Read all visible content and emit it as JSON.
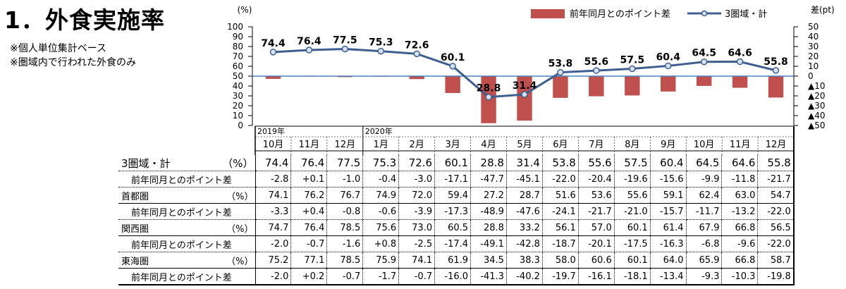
{
  "title": "1．外食実施率",
  "notes": [
    "※個人単位集計ベース",
    "※圏域内で行われた外食のみ"
  ],
  "chart_data": {
    "type": "bar",
    "categories": [
      "10月",
      "11月",
      "12月",
      "1月",
      "2月",
      "3月",
      "4月",
      "5月",
      "6月",
      "7月",
      "8月",
      "9月",
      "10月",
      "11月",
      "12月"
    ],
    "year_labels": [
      {
        "text": "2019年",
        "index": 0
      },
      {
        "text": "2020年",
        "index": 3
      }
    ],
    "left_axis": {
      "unit": "(%)",
      "ylim": [
        0,
        100
      ],
      "ticks": [
        "100",
        "90",
        "80",
        "70",
        "60",
        "50",
        "40",
        "30",
        "20",
        "10",
        "0"
      ]
    },
    "right_axis": {
      "unit": "差(pt)",
      "ylim": [
        -50,
        50
      ],
      "ticks": [
        "50",
        "40",
        "30",
        "20",
        "10",
        "0",
        "▲10",
        "▲20",
        "▲30",
        "▲40",
        "▲50"
      ]
    },
    "legend": {
      "position": "top-right",
      "bar_label": "前年同月とのポイント差",
      "line_label": "3圏域・計"
    },
    "colors": {
      "bar": "#c0504d",
      "line": "#3f5e91",
      "marker_fill": "#d6e0ee",
      "zero_line": "#4f81bd"
    },
    "series": [
      {
        "name": "3圏域・計",
        "kind": "line",
        "axis": "left",
        "values": [
          74.4,
          76.4,
          77.5,
          75.3,
          72.6,
          60.1,
          28.8,
          31.4,
          53.8,
          55.6,
          57.5,
          60.4,
          64.5,
          64.6,
          55.8
        ]
      },
      {
        "name": "前年同月とのポイント差",
        "kind": "bar",
        "axis": "right",
        "values": [
          -2.8,
          0.1,
          -1.0,
          -0.4,
          -3.0,
          -17.1,
          -47.7,
          -45.1,
          -22.0,
          -20.4,
          -19.6,
          -15.6,
          -9.9,
          -11.8,
          -21.7
        ]
      }
    ]
  },
  "table": {
    "rows": [
      {
        "label": "3圏域・計",
        "unit": "（%）",
        "type": "main",
        "values": [
          "74.4",
          "76.4",
          "77.5",
          "75.3",
          "72.6",
          "60.1",
          "28.8",
          "31.4",
          "53.8",
          "55.6",
          "57.5",
          "60.4",
          "64.5",
          "64.6",
          "55.8"
        ]
      },
      {
        "label": "前年同月とのポイント差",
        "unit": "",
        "type": "sub",
        "values": [
          "-2.8",
          "+0.1",
          "-1.0",
          "-0.4",
          "-3.0",
          "-17.1",
          "-47.7",
          "-45.1",
          "-22.0",
          "-20.4",
          "-19.6",
          "-15.6",
          "-9.9",
          "-11.8",
          "-21.7"
        ]
      },
      {
        "label": "首都圏",
        "unit": "（%）",
        "type": "region",
        "values": [
          "74.1",
          "76.2",
          "76.7",
          "74.9",
          "72.0",
          "59.4",
          "27.2",
          "28.7",
          "51.6",
          "53.6",
          "55.6",
          "59.1",
          "62.4",
          "63.0",
          "54.7"
        ]
      },
      {
        "label": "前年同月とのポイント差",
        "unit": "",
        "type": "sub",
        "values": [
          "-3.3",
          "+0.4",
          "-0.8",
          "-0.6",
          "-3.9",
          "-17.3",
          "-48.9",
          "-47.6",
          "-24.1",
          "-21.7",
          "-21.0",
          "-15.7",
          "-11.7",
          "-13.2",
          "-22.0"
        ]
      },
      {
        "label": "関西圏",
        "unit": "（%）",
        "type": "region",
        "values": [
          "74.7",
          "76.4",
          "78.5",
          "75.6",
          "73.0",
          "60.5",
          "28.8",
          "33.2",
          "56.1",
          "57.0",
          "60.1",
          "61.4",
          "67.9",
          "66.8",
          "56.5"
        ]
      },
      {
        "label": "前年同月とのポイント差",
        "unit": "",
        "type": "sub",
        "values": [
          "-2.0",
          "-0.7",
          "-1.6",
          "+0.8",
          "-2.5",
          "-17.4",
          "-49.1",
          "-42.8",
          "-18.7",
          "-20.1",
          "-17.5",
          "-16.3",
          "-6.8",
          "-9.6",
          "-22.0"
        ]
      },
      {
        "label": "東海圏",
        "unit": "（%）",
        "type": "region",
        "values": [
          "75.2",
          "77.1",
          "78.5",
          "75.9",
          "74.1",
          "61.9",
          "34.5",
          "38.3",
          "58.0",
          "60.6",
          "60.1",
          "64.0",
          "65.9",
          "66.8",
          "58.7"
        ]
      },
      {
        "label": "前年同月とのポイント差",
        "unit": "",
        "type": "sub",
        "values": [
          "-2.0",
          "+0.2",
          "-0.7",
          "-1.7",
          "-0.7",
          "-16.0",
          "-41.3",
          "-40.2",
          "-19.7",
          "-16.1",
          "-18.1",
          "-13.4",
          "-9.3",
          "-10.3",
          "-19.8"
        ]
      }
    ]
  }
}
